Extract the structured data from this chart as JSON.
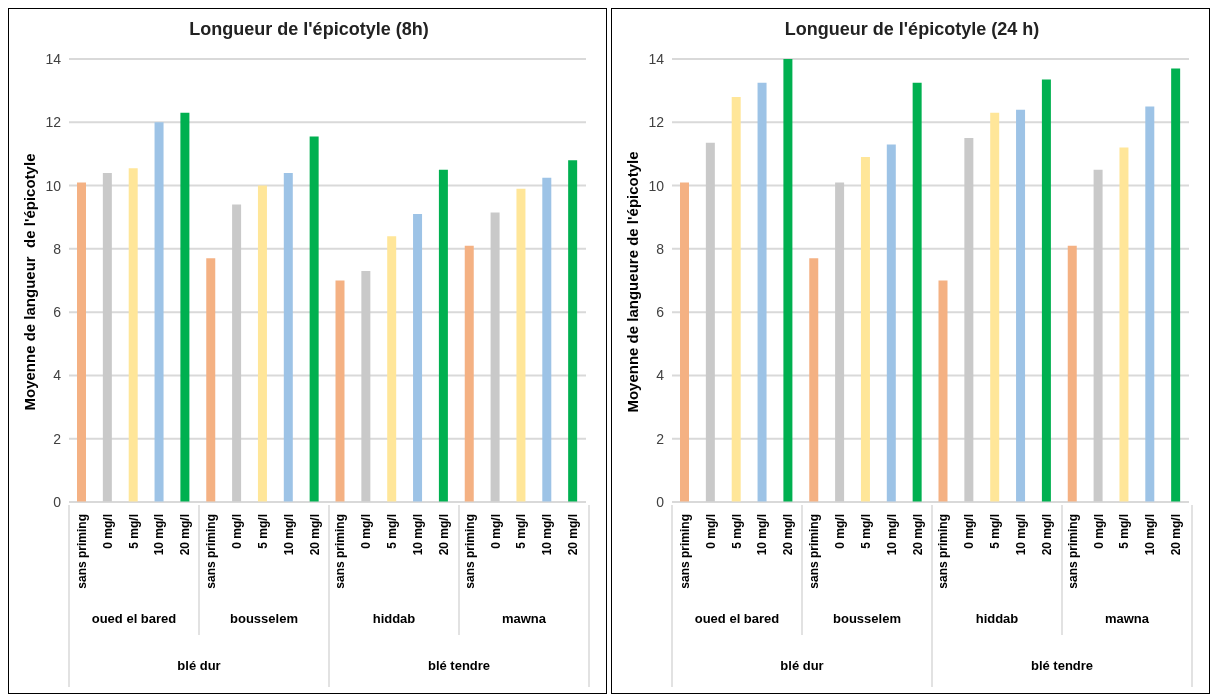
{
  "chart_data": [
    {
      "type": "bar",
      "title": "Longueur de l'épicotyle (8h)",
      "ylabel": "Moyenne de langueur  de l'épicotyle",
      "categories": [
        "sans priming",
        "0 mg/l",
        "5 mg/l",
        "10 mg/l",
        "20 mg/l",
        "sans priming",
        "0 mg/l",
        "5 mg/l",
        "10 mg/l",
        "20 mg/l",
        "sans priming",
        "0 mg/l",
        "5 mg/l",
        "10 mg/l",
        "20 mg/l",
        "sans priming",
        "0 mg/l",
        "5 mg/l",
        "10 mg/l",
        "20 mg/l"
      ],
      "values": [
        10.1,
        10.4,
        10.55,
        12.0,
        12.3,
        7.7,
        9.4,
        10.0,
        10.4,
        11.55,
        7.0,
        7.3,
        8.4,
        9.1,
        10.5,
        8.1,
        9.15,
        9.9,
        10.25,
        10.8
      ],
      "colors": [
        "#f4b183",
        "#c9c9c9",
        "#ffe699",
        "#9dc3e6",
        "#00b050",
        "#f4b183",
        "#c9c9c9",
        "#ffe699",
        "#9dc3e6",
        "#00b050",
        "#f4b183",
        "#c9c9c9",
        "#ffe699",
        "#9dc3e6",
        "#00b050",
        "#f4b183",
        "#c9c9c9",
        "#ffe699",
        "#9dc3e6",
        "#00b050"
      ],
      "ylim": [
        0,
        14
      ],
      "yticks": [
        0,
        2,
        4,
        6,
        8,
        10,
        12,
        14
      ],
      "grid": "y",
      "annotations": [
        "oued el bared",
        "bousselem",
        "hiddab",
        "mawna",
        "blé dur",
        "blé tendre"
      ]
    },
    {
      "type": "bar",
      "title": "Longueur de l'épicotyle (24 h)",
      "ylabel": "Moyenne de langueure de l'épicotyle",
      "categories": [
        "sans priming",
        "0 mg/l",
        "5 mg/l",
        "10 mg/l",
        "20 mg/l",
        "sans priming",
        "0 mg/l",
        "5 mg/l",
        "10 mg/l",
        "20 mg/l",
        "sans priming",
        "0 mg/l",
        "5 mg/l",
        "10 mg/l",
        "20 mg/l",
        "sans priming",
        "0 mg/l",
        "5 mg/l",
        "10 mg/l",
        "20 mg/l"
      ],
      "values": [
        10.1,
        11.35,
        12.8,
        13.25,
        14.0,
        7.7,
        10.1,
        10.9,
        11.3,
        13.25,
        7.0,
        11.5,
        12.3,
        12.4,
        13.35,
        8.1,
        10.5,
        11.2,
        12.5,
        13.7
      ],
      "colors": [
        "#f4b183",
        "#c9c9c9",
        "#ffe699",
        "#9dc3e6",
        "#00b050",
        "#f4b183",
        "#c9c9c9",
        "#ffe699",
        "#9dc3e6",
        "#00b050",
        "#f4b183",
        "#c9c9c9",
        "#ffe699",
        "#9dc3e6",
        "#00b050",
        "#f4b183",
        "#c9c9c9",
        "#ffe699",
        "#9dc3e6",
        "#00b050"
      ],
      "ylim": [
        0,
        14
      ],
      "yticks": [
        0,
        2,
        4,
        6,
        8,
        10,
        12,
        14
      ],
      "grid": "y",
      "annotations": [
        "oued el bared",
        "bousselem",
        "hiddab",
        "mawna",
        "blé dur",
        "blé tendre"
      ]
    }
  ]
}
